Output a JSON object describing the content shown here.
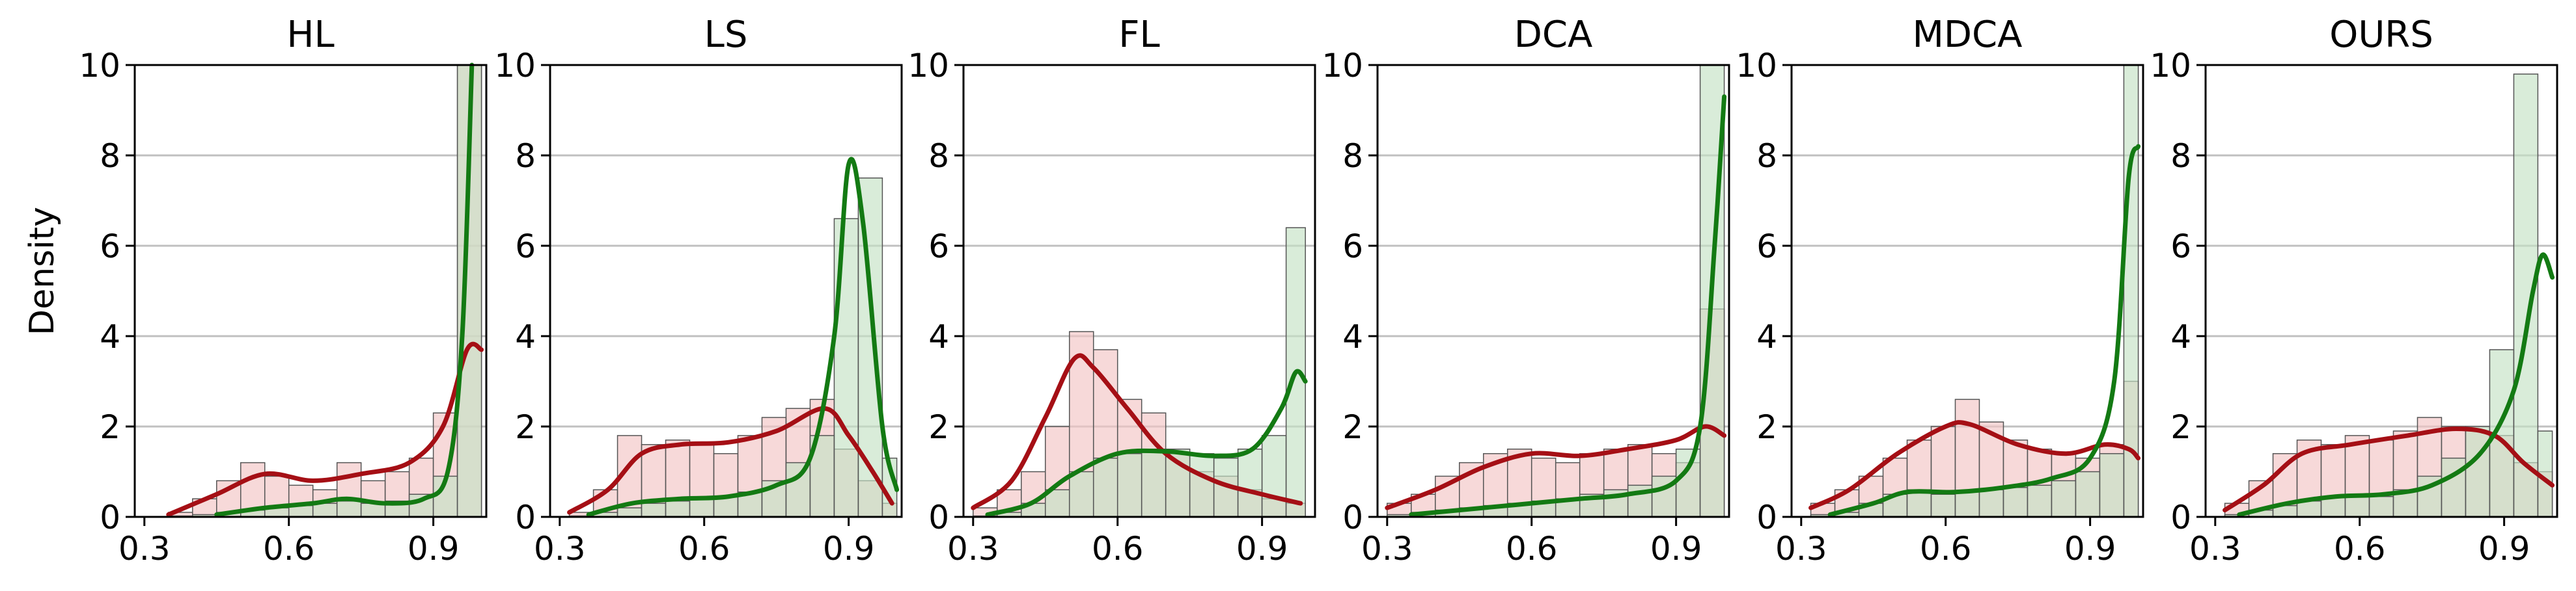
{
  "figure": {
    "ylabel": "Density"
  },
  "colors": {
    "incorrect": "#a50f15",
    "correct": "#137a13",
    "incorrect_fill": "#f2c4c4",
    "correct_fill": "#c4e2c4",
    "bar_edge": "#555555",
    "grid": "#c0c0c0"
  },
  "chart_data": [
    {
      "type": "histogram",
      "title": "HL",
      "xlim": [
        0.28,
        1.01
      ],
      "ylim": [
        0,
        10
      ],
      "xticks": [
        "0.3",
        "0.6",
        "0.9"
      ],
      "yticks": [
        "0",
        "2",
        "4",
        "6",
        "8",
        "10"
      ],
      "grid": "horizontal",
      "bins": [
        0.35,
        0.4,
        0.45,
        0.5,
        0.55,
        0.6,
        0.65,
        0.7,
        0.75,
        0.8,
        0.85,
        0.9,
        0.95,
        1.0
      ],
      "series": [
        {
          "role": "incorrect",
          "hist": [
            0.1,
            0.4,
            0.8,
            1.2,
            0.9,
            0.7,
            0.6,
            1.2,
            0.8,
            1.0,
            1.3,
            2.3,
            10.0
          ],
          "kde": [
            [
              0.35,
              0.05
            ],
            [
              0.45,
              0.5
            ],
            [
              0.55,
              0.95
            ],
            [
              0.65,
              0.8
            ],
            [
              0.75,
              0.95
            ],
            [
              0.85,
              1.2
            ],
            [
              0.92,
              2.0
            ],
            [
              0.97,
              3.7
            ],
            [
              1.0,
              3.7
            ]
          ]
        },
        {
          "role": "correct",
          "hist": [
            0.02,
            0.05,
            0.1,
            0.15,
            0.2,
            0.25,
            0.3,
            0.35,
            0.3,
            0.35,
            0.5,
            0.9,
            10.0
          ],
          "kde": [
            [
              0.45,
              0.05
            ],
            [
              0.55,
              0.2
            ],
            [
              0.65,
              0.3
            ],
            [
              0.72,
              0.4
            ],
            [
              0.8,
              0.3
            ],
            [
              0.88,
              0.4
            ],
            [
              0.93,
              1.0
            ],
            [
              0.96,
              4.0
            ],
            [
              0.98,
              10.0
            ]
          ]
        }
      ]
    },
    {
      "type": "histogram",
      "title": "LS",
      "xlim": [
        0.28,
        1.01
      ],
      "ylim": [
        0,
        10
      ],
      "xticks": [
        "0.3",
        "0.6",
        "0.9"
      ],
      "yticks": [
        "0",
        "2",
        "4",
        "6",
        "8",
        "10"
      ],
      "grid": "horizontal",
      "bins": [
        0.32,
        0.37,
        0.42,
        0.47,
        0.52,
        0.57,
        0.62,
        0.67,
        0.72,
        0.77,
        0.82,
        0.87,
        0.92,
        0.97,
        1.0
      ],
      "series": [
        {
          "role": "incorrect",
          "hist": [
            0.1,
            0.6,
            1.8,
            1.6,
            1.7,
            1.6,
            1.4,
            1.8,
            2.2,
            2.4,
            2.6,
            1.5,
            0.8,
            0.3
          ],
          "kde": [
            [
              0.32,
              0.1
            ],
            [
              0.4,
              0.6
            ],
            [
              0.47,
              1.4
            ],
            [
              0.55,
              1.6
            ],
            [
              0.65,
              1.65
            ],
            [
              0.75,
              1.9
            ],
            [
              0.85,
              2.4
            ],
            [
              0.9,
              1.8
            ],
            [
              0.95,
              1.0
            ],
            [
              0.99,
              0.3
            ]
          ]
        },
        {
          "role": "correct",
          "hist": [
            0.02,
            0.1,
            0.2,
            0.3,
            0.35,
            0.4,
            0.45,
            0.55,
            0.8,
            1.2,
            1.8,
            6.6,
            7.5,
            1.3
          ],
          "kde": [
            [
              0.36,
              0.05
            ],
            [
              0.45,
              0.3
            ],
            [
              0.55,
              0.4
            ],
            [
              0.65,
              0.45
            ],
            [
              0.75,
              0.7
            ],
            [
              0.82,
              1.3
            ],
            [
              0.87,
              4.0
            ],
            [
              0.9,
              7.8
            ],
            [
              0.93,
              6.5
            ],
            [
              0.97,
              2.0
            ],
            [
              1.0,
              0.6
            ]
          ]
        }
      ]
    },
    {
      "type": "histogram",
      "title": "FL",
      "xlim": [
        0.28,
        1.01
      ],
      "ylim": [
        0,
        10
      ],
      "xticks": [
        "0.3",
        "0.6",
        "0.9"
      ],
      "yticks": [
        "0",
        "2",
        "4",
        "6",
        "8",
        "10"
      ],
      "grid": "horizontal",
      "bins": [
        0.3,
        0.35,
        0.4,
        0.45,
        0.5,
        0.55,
        0.6,
        0.65,
        0.7,
        0.75,
        0.8,
        0.85,
        0.9,
        0.95,
        0.99
      ],
      "series": [
        {
          "role": "incorrect",
          "hist": [
            0.2,
            0.6,
            1.0,
            2.0,
            4.1,
            3.7,
            2.6,
            2.3,
            1.4,
            1.0,
            0.9,
            0.6,
            0.4,
            0.3
          ],
          "kde": [
            [
              0.3,
              0.2
            ],
            [
              0.38,
              0.8
            ],
            [
              0.45,
              2.2
            ],
            [
              0.51,
              3.5
            ],
            [
              0.55,
              3.3
            ],
            [
              0.62,
              2.4
            ],
            [
              0.7,
              1.4
            ],
            [
              0.8,
              0.8
            ],
            [
              0.9,
              0.5
            ],
            [
              0.98,
              0.3
            ]
          ]
        },
        {
          "role": "correct",
          "hist": [
            0.02,
            0.1,
            0.3,
            0.6,
            1.0,
            1.3,
            1.4,
            1.5,
            1.5,
            1.4,
            1.3,
            1.5,
            1.8,
            6.4
          ],
          "kde": [
            [
              0.33,
              0.05
            ],
            [
              0.42,
              0.3
            ],
            [
              0.5,
              0.9
            ],
            [
              0.6,
              1.4
            ],
            [
              0.7,
              1.45
            ],
            [
              0.8,
              1.35
            ],
            [
              0.88,
              1.5
            ],
            [
              0.94,
              2.4
            ],
            [
              0.97,
              3.2
            ],
            [
              0.99,
              3.0
            ]
          ]
        }
      ]
    },
    {
      "type": "histogram",
      "title": "DCA",
      "xlim": [
        0.28,
        1.01
      ],
      "ylim": [
        0,
        10
      ],
      "xticks": [
        "0.3",
        "0.6",
        "0.9"
      ],
      "yticks": [
        "0",
        "2",
        "4",
        "6",
        "8",
        "10"
      ],
      "grid": "horizontal",
      "bins": [
        0.3,
        0.35,
        0.4,
        0.45,
        0.5,
        0.55,
        0.6,
        0.65,
        0.7,
        0.75,
        0.8,
        0.85,
        0.9,
        0.95,
        1.0
      ],
      "series": [
        {
          "role": "incorrect",
          "hist": [
            0.3,
            0.5,
            0.9,
            1.2,
            1.4,
            1.5,
            1.3,
            1.2,
            1.4,
            1.5,
            1.6,
            1.4,
            1.2,
            4.6
          ],
          "kde": [
            [
              0.3,
              0.2
            ],
            [
              0.4,
              0.6
            ],
            [
              0.5,
              1.1
            ],
            [
              0.6,
              1.4
            ],
            [
              0.7,
              1.35
            ],
            [
              0.8,
              1.5
            ],
            [
              0.9,
              1.7
            ],
            [
              0.96,
              2.0
            ],
            [
              1.0,
              1.8
            ]
          ]
        },
        {
          "role": "correct",
          "hist": [
            0.05,
            0.1,
            0.15,
            0.2,
            0.25,
            0.3,
            0.35,
            0.4,
            0.5,
            0.6,
            0.7,
            0.9,
            1.5,
            10.0
          ],
          "kde": [
            [
              0.35,
              0.05
            ],
            [
              0.5,
              0.2
            ],
            [
              0.6,
              0.3
            ],
            [
              0.7,
              0.4
            ],
            [
              0.8,
              0.5
            ],
            [
              0.9,
              0.8
            ],
            [
              0.95,
              2.0
            ],
            [
              0.98,
              6.0
            ],
            [
              1.0,
              9.3
            ]
          ]
        }
      ]
    },
    {
      "type": "histogram",
      "title": "MDCA",
      "xlim": [
        0.28,
        1.01
      ],
      "ylim": [
        0,
        10
      ],
      "xticks": [
        "0.3",
        "0.6",
        "0.9"
      ],
      "yticks": [
        "0",
        "2",
        "4",
        "6",
        "8",
        "10"
      ],
      "grid": "horizontal",
      "bins": [
        0.32,
        0.37,
        0.42,
        0.47,
        0.52,
        0.57,
        0.62,
        0.67,
        0.72,
        0.77,
        0.82,
        0.87,
        0.92,
        0.97,
        1.0
      ],
      "series": [
        {
          "role": "incorrect",
          "hist": [
            0.3,
            0.6,
            0.9,
            1.3,
            1.7,
            2.0,
            2.6,
            2.1,
            1.7,
            1.5,
            1.4,
            1.3,
            1.6,
            3.0
          ],
          "kde": [
            [
              0.32,
              0.2
            ],
            [
              0.4,
              0.6
            ],
            [
              0.5,
              1.4
            ],
            [
              0.6,
              2.0
            ],
            [
              0.65,
              2.05
            ],
            [
              0.75,
              1.6
            ],
            [
              0.85,
              1.4
            ],
            [
              0.93,
              1.6
            ],
            [
              0.98,
              1.5
            ],
            [
              1.0,
              1.3
            ]
          ]
        },
        {
          "role": "correct",
          "hist": [
            0.05,
            0.1,
            0.3,
            0.5,
            0.6,
            0.5,
            0.55,
            0.6,
            0.65,
            0.7,
            0.8,
            1.0,
            1.4,
            10.0
          ],
          "kde": [
            [
              0.36,
              0.05
            ],
            [
              0.45,
              0.3
            ],
            [
              0.52,
              0.55
            ],
            [
              0.62,
              0.55
            ],
            [
              0.72,
              0.65
            ],
            [
              0.82,
              0.85
            ],
            [
              0.9,
              1.3
            ],
            [
              0.95,
              3.0
            ],
            [
              0.98,
              7.5
            ],
            [
              1.0,
              8.2
            ]
          ]
        }
      ]
    },
    {
      "type": "histogram",
      "title": "OURS",
      "xlim": [
        0.28,
        1.01
      ],
      "ylim": [
        0,
        10
      ],
      "xticks": [
        "0.3",
        "0.6",
        "0.9"
      ],
      "yticks": [
        "0",
        "2",
        "4",
        "6",
        "8",
        "10"
      ],
      "grid": "horizontal",
      "bins": [
        0.32,
        0.37,
        0.42,
        0.47,
        0.52,
        0.57,
        0.62,
        0.67,
        0.72,
        0.77,
        0.82,
        0.87,
        0.92,
        0.97,
        1.0
      ],
      "series": [
        {
          "role": "incorrect",
          "hist": [
            0.3,
            0.8,
            1.4,
            1.7,
            1.6,
            1.8,
            1.7,
            1.9,
            2.2,
            2.0,
            1.9,
            1.8,
            1.2,
            1.0
          ],
          "kde": [
            [
              0.32,
              0.15
            ],
            [
              0.4,
              0.7
            ],
            [
              0.48,
              1.4
            ],
            [
              0.58,
              1.6
            ],
            [
              0.7,
              1.8
            ],
            [
              0.8,
              1.95
            ],
            [
              0.88,
              1.8
            ],
            [
              0.94,
              1.2
            ],
            [
              1.0,
              0.7
            ]
          ]
        },
        {
          "role": "correct",
          "hist": [
            0.05,
            0.15,
            0.25,
            0.35,
            0.45,
            0.45,
            0.45,
            0.6,
            0.9,
            1.3,
            2.0,
            3.7,
            9.8,
            1.9
          ],
          "kde": [
            [
              0.35,
              0.05
            ],
            [
              0.45,
              0.3
            ],
            [
              0.55,
              0.45
            ],
            [
              0.65,
              0.5
            ],
            [
              0.75,
              0.7
            ],
            [
              0.85,
              1.4
            ],
            [
              0.92,
              2.8
            ],
            [
              0.96,
              5.0
            ],
            [
              0.98,
              5.8
            ],
            [
              1.0,
              5.3
            ]
          ]
        }
      ]
    }
  ]
}
